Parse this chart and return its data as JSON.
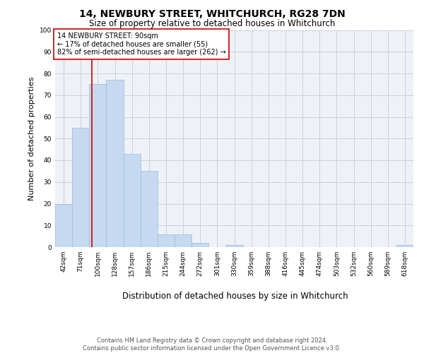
{
  "title1": "14, NEWBURY STREET, WHITCHURCH, RG28 7DN",
  "title2": "Size of property relative to detached houses in Whitchurch",
  "xlabel": "Distribution of detached houses by size in Whitchurch",
  "ylabel": "Number of detached properties",
  "bar_labels": [
    "42sqm",
    "71sqm",
    "100sqm",
    "128sqm",
    "157sqm",
    "186sqm",
    "215sqm",
    "244sqm",
    "272sqm",
    "301sqm",
    "330sqm",
    "359sqm",
    "388sqm",
    "416sqm",
    "445sqm",
    "474sqm",
    "503sqm",
    "532sqm",
    "560sqm",
    "589sqm",
    "618sqm"
  ],
  "bar_values": [
    20,
    55,
    75,
    77,
    43,
    35,
    6,
    6,
    2,
    0,
    1,
    0,
    0,
    0,
    0,
    0,
    0,
    0,
    0,
    0,
    1
  ],
  "bar_color": "#c5d9f0",
  "bar_edge_color": "#a0b8d8",
  "grid_color": "#c8d0dc",
  "background_color": "#eef2f8",
  "annotation_text_line1": "14 NEWBURY STREET: 90sqm",
  "annotation_text_line2": "← 17% of detached houses are smaller (55)",
  "annotation_text_line3": "82% of semi-detached houses are larger (262) →",
  "red_line_color": "#cc0000",
  "annotation_box_color": "#ffffff",
  "annotation_box_edge": "#cc0000",
  "footer_line1": "Contains HM Land Registry data © Crown copyright and database right 2024.",
  "footer_line2": "Contains public sector information licensed under the Open Government Licence v3.0.",
  "ylim": [
    0,
    100
  ],
  "yticks": [
    0,
    10,
    20,
    30,
    40,
    50,
    60,
    70,
    80,
    90,
    100
  ],
  "title1_fontsize": 10,
  "title2_fontsize": 8.5,
  "ylabel_fontsize": 8,
  "xlabel_fontsize": 8.5,
  "tick_fontsize": 6.5,
  "footer_fontsize": 6,
  "ann_fontsize": 7
}
